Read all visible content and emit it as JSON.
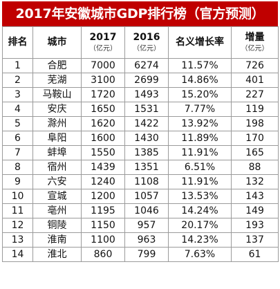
{
  "title": "2017年安徽城市GDP排行榜（官方预测）",
  "headers": {
    "rank": "排名",
    "city": "城市",
    "y2017": "2017",
    "y2017_unit": "（亿元）",
    "y2016": "2016",
    "y2016_unit": "（亿元）",
    "growth": "名义增长率",
    "increase": "增量",
    "increase_unit": "（亿元）"
  },
  "rows": [
    {
      "rank": "1",
      "city": "合肥",
      "y2017": "7000",
      "y2016": "6274",
      "growth": "11.57%",
      "increase": "726"
    },
    {
      "rank": "2",
      "city": "芜湖",
      "y2017": "3100",
      "y2016": "2699",
      "growth": "14.86%",
      "increase": "401"
    },
    {
      "rank": "3",
      "city": "马鞍山",
      "y2017": "1720",
      "y2016": "1493",
      "growth": "15.20%",
      "increase": "227"
    },
    {
      "rank": "4",
      "city": "安庆",
      "y2017": "1650",
      "y2016": "1531",
      "growth": "7.77%",
      "increase": "119"
    },
    {
      "rank": "5",
      "city": "滁州",
      "y2017": "1620",
      "y2016": "1422",
      "growth": "13.92%",
      "increase": "198"
    },
    {
      "rank": "6",
      "city": "阜阳",
      "y2017": "1600",
      "y2016": "1430",
      "growth": "11.89%",
      "increase": "170"
    },
    {
      "rank": "7",
      "city": "蚌埠",
      "y2017": "1550",
      "y2016": "1385",
      "growth": "11.91%",
      "increase": "165"
    },
    {
      "rank": "8",
      "city": "宿州",
      "y2017": "1439",
      "y2016": "1351",
      "growth": "6.51%",
      "increase": "88"
    },
    {
      "rank": "9",
      "city": "六安",
      "y2017": "1240",
      "y2016": "1108",
      "growth": "11.91%",
      "increase": "132"
    },
    {
      "rank": "10",
      "city": "宣城",
      "y2017": "1200",
      "y2016": "1057",
      "growth": "13.53%",
      "increase": "143"
    },
    {
      "rank": "11",
      "city": "亳州",
      "y2017": "1195",
      "y2016": "1046",
      "growth": "14.24%",
      "increase": "149"
    },
    {
      "rank": "12",
      "city": "铜陵",
      "y2017": "1150",
      "y2016": "957",
      "growth": "20.17%",
      "increase": "193"
    },
    {
      "rank": "13",
      "city": "淮南",
      "y2017": "1100",
      "y2016": "963",
      "growth": "14.23%",
      "increase": "137"
    },
    {
      "rank": "14",
      "city": "淮北",
      "y2017": "860",
      "y2016": "799",
      "growth": "7.63%",
      "increase": "61"
    }
  ],
  "colors": {
    "title_background": "#c00000",
    "title_text": "#ffffff",
    "grid_line": "#9a9a9a"
  }
}
